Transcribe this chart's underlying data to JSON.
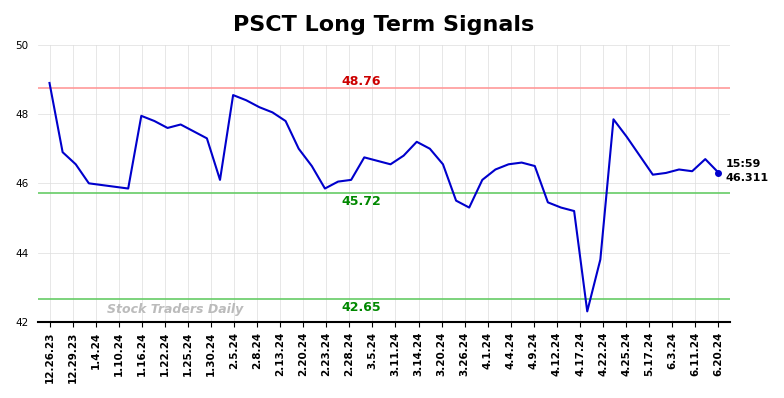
{
  "title": "PSCT Long Term Signals",
  "x_labels": [
    "12.26.23",
    "12.29.23",
    "1.4.24",
    "1.10.24",
    "1.16.24",
    "1.22.24",
    "1.25.24",
    "1.30.24",
    "2.5.24",
    "2.8.24",
    "2.13.24",
    "2.20.24",
    "2.23.24",
    "2.28.24",
    "3.5.24",
    "3.11.24",
    "3.14.24",
    "3.20.24",
    "3.26.24",
    "4.1.24",
    "4.4.24",
    "4.9.24",
    "4.12.24",
    "4.17.24",
    "4.22.24",
    "4.25.24",
    "5.17.24",
    "6.3.24",
    "6.11.24",
    "6.20.24"
  ],
  "detailed_y": [
    48.9,
    46.9,
    46.55,
    46.0,
    45.95,
    45.9,
    45.85,
    47.95,
    47.8,
    47.6,
    47.7,
    47.5,
    47.3,
    46.1,
    48.55,
    48.4,
    48.2,
    48.05,
    47.8,
    47.0,
    46.5,
    45.85,
    46.05,
    46.1,
    46.75,
    46.65,
    46.55,
    46.8,
    47.2,
    47.0,
    46.55,
    45.5,
    45.3,
    46.1,
    46.4,
    46.55,
    46.6,
    46.5,
    45.45,
    45.3,
    45.2,
    42.3,
    43.8,
    47.85,
    47.35,
    46.8,
    46.25,
    46.3,
    46.4,
    46.35,
    46.7,
    46.311
  ],
  "red_line": 48.76,
  "green_line_upper": 45.72,
  "green_line_lower": 42.65,
  "red_label": "48.76",
  "green_upper_label": "45.72",
  "green_lower_label": "42.65",
  "end_label_time": "15:59",
  "end_label_value": "46.311",
  "ylim": [
    42,
    50
  ],
  "yticks": [
    42,
    44,
    46,
    48,
    50
  ],
  "line_color": "#0000cc",
  "red_line_color": "#ff9999",
  "red_label_color": "#cc0000",
  "green_line_color": "#66cc66",
  "green_label_color": "#008800",
  "watermark_color": "#bbbbbb",
  "watermark_text": "Stock Traders Daily",
  "bg_color": "#ffffff",
  "grid_color": "#dddddd",
  "title_fontsize": 16,
  "tick_fontsize": 7.5
}
